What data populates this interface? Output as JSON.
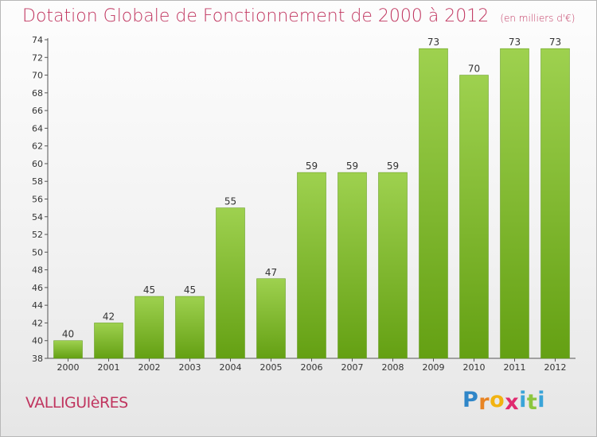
{
  "title": "Dotation Globale de Fonctionnement de 2000 à 2012",
  "subtitle": "(en milliers d'€)",
  "commune": "VALLIGUIèRES",
  "logo": {
    "letters": [
      "P",
      "r",
      "o",
      "x",
      "i",
      "t",
      "i"
    ],
    "colors": [
      "#2f86c8",
      "#e88424",
      "#f2b311",
      "#e02a6f",
      "#3aa4d8",
      "#8cc63e",
      "#3aa4d8"
    ]
  },
  "colors": {
    "bar_top": "#9ed14f",
    "bar_bottom": "#64a013",
    "title": "#c0355f"
  },
  "chart_data": {
    "type": "bar",
    "categories": [
      "2000",
      "2001",
      "2002",
      "2003",
      "2004",
      "2005",
      "2006",
      "2007",
      "2008",
      "2009",
      "2010",
      "2011",
      "2012"
    ],
    "values": [
      40,
      42,
      45,
      45,
      55,
      47,
      59,
      59,
      59,
      73,
      70,
      73,
      73
    ],
    "ylim": [
      38,
      74
    ],
    "yticks": [
      38,
      40,
      42,
      44,
      46,
      48,
      50,
      52,
      54,
      56,
      58,
      60,
      62,
      64,
      66,
      68,
      70,
      72,
      74
    ],
    "grid": false,
    "data_labels": true
  }
}
